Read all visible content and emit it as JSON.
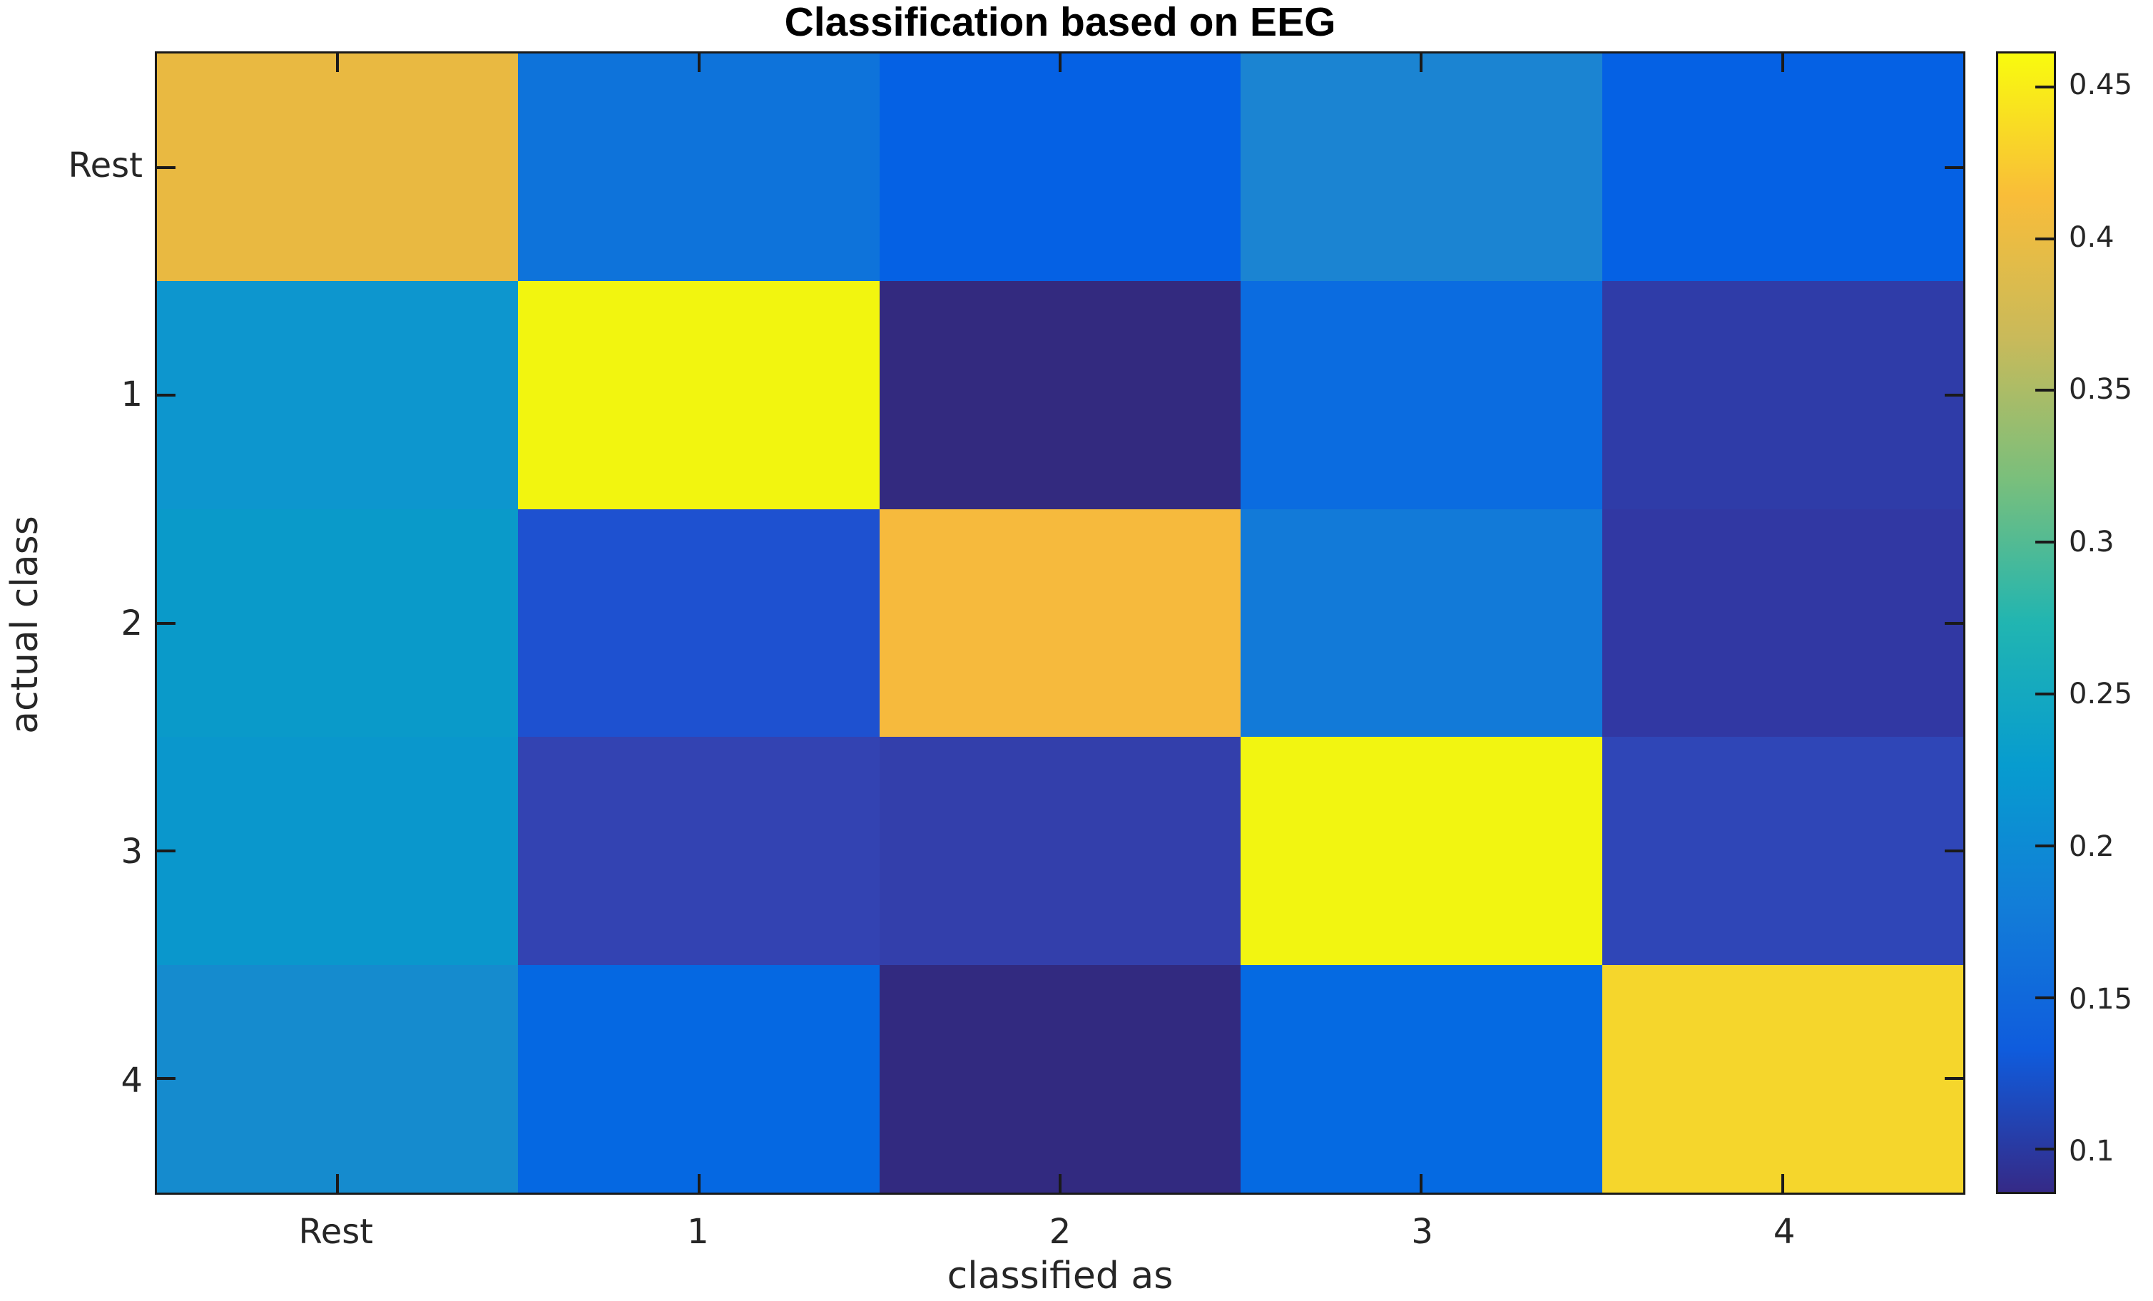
{
  "figure": {
    "background": "#ffffff"
  },
  "chart_data": {
    "type": "heatmap",
    "title": "Classification based on EEG",
    "xlabel": "classified as",
    "ylabel": "actual class",
    "x_categories": [
      "Rest",
      "1",
      "2",
      "3",
      "4"
    ],
    "y_categories": [
      "Rest",
      "1",
      "2",
      "3",
      "4"
    ],
    "values": [
      [
        0.4,
        0.17,
        0.14,
        0.19,
        0.14
      ],
      [
        0.22,
        0.46,
        0.09,
        0.15,
        0.1
      ],
      [
        0.22,
        0.12,
        0.41,
        0.17,
        0.1
      ],
      [
        0.22,
        0.11,
        0.11,
        0.46,
        0.11
      ],
      [
        0.2,
        0.15,
        0.09,
        0.15,
        0.43
      ]
    ],
    "cell_colors": [
      [
        "#e9b941",
        "#0e73da",
        "#0561e4",
        "#1b84d2",
        "#0561e4"
      ],
      [
        "#0d96ce",
        "#f2f50f",
        "#332a7f",
        "#0b6ce0",
        "#2f3ca8"
      ],
      [
        "#0a9ac9",
        "#1e51d0",
        "#f6ba3d",
        "#127ad8",
        "#3138a3"
      ],
      [
        "#0a97cc",
        "#3343b2",
        "#333fab",
        "#f2f511",
        "#2f46b7"
      ],
      [
        "#158bce",
        "#0568e2",
        "#322a80",
        "#056ae2",
        "#f5d62c"
      ]
    ],
    "colormap": "parula",
    "grid": false,
    "legend": false,
    "colorbar": {
      "position": "right",
      "vmin": 0.086,
      "vmax": 0.461,
      "tick_values": [
        0.45,
        0.4,
        0.35,
        0.3,
        0.25,
        0.2,
        0.15,
        0.1
      ],
      "tick_labels": [
        "0.45",
        "0.4",
        "0.35",
        "0.3",
        "0.25",
        "0.2",
        "0.15",
        "0.1"
      ],
      "gradient_top_to_bottom": [
        {
          "pos": 0,
          "color": "#f9fb0e"
        },
        {
          "pos": 12.5,
          "color": "#f9bd39"
        },
        {
          "pos": 25,
          "color": "#c9ba5a"
        },
        {
          "pos": 37.5,
          "color": "#79bf7c"
        },
        {
          "pos": 50,
          "color": "#21b5b1"
        },
        {
          "pos": 62.5,
          "color": "#079ccf"
        },
        {
          "pos": 75,
          "color": "#127dd8"
        },
        {
          "pos": 87.5,
          "color": "#0f5cdd"
        },
        {
          "pos": 100,
          "color": "#352a87"
        }
      ]
    }
  },
  "colors": {
    "axis": "#1a1a1a",
    "tick_label": "#262626",
    "title": "#000000",
    "background": "#ffffff"
  }
}
